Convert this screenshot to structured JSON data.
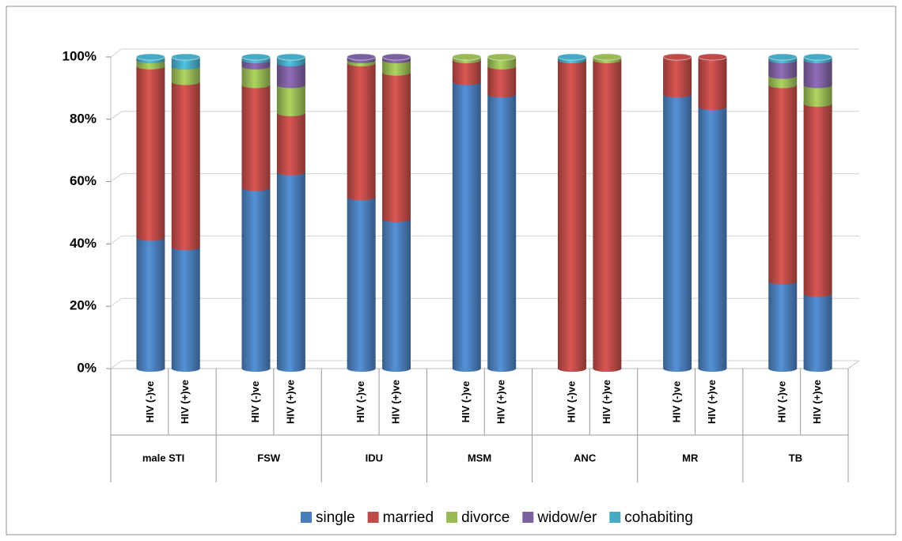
{
  "chart_data": {
    "type": "stacked_bar_100",
    "groups": [
      "male STI",
      "FSW",
      "IDU",
      "MSM",
      "ANC",
      "MR",
      "TB"
    ],
    "categories": [
      "HIV  (-)ve",
      "HIV (+)ve",
      "HIV  (-)ve",
      "HIV (+)ve",
      "HIV  (-)ve",
      "HIV (+)ve",
      "HIV  (-)ve",
      "HIV (+)ve",
      "HIV  (-)ve",
      "HIV (+)ve",
      "HIV  (-)ve",
      "HIV (+)ve",
      "HIV  (-)ve",
      "HIV (+)ve"
    ],
    "series": [
      {
        "name": "single",
        "color": "#4a7ebb",
        "values": [
          42,
          39,
          58,
          63,
          55,
          48,
          92,
          88,
          0,
          0,
          88,
          84,
          28,
          24
        ]
      },
      {
        "name": "married",
        "color": "#be4b48",
        "values": [
          55,
          53,
          33,
          19,
          43,
          47,
          7,
          9,
          99,
          99,
          12,
          16,
          63,
          61
        ]
      },
      {
        "name": "divorce",
        "color": "#98b954",
        "values": [
          2,
          5,
          6,
          9,
          1,
          4,
          1,
          3,
          0,
          1,
          0,
          0,
          3,
          6
        ]
      },
      {
        "name": "widow/er",
        "color": "#7d60a0",
        "values": [
          0,
          0,
          2,
          7,
          1,
          1,
          0,
          0,
          0,
          0,
          0,
          0,
          5,
          8
        ]
      },
      {
        "name": "cohabiting",
        "color": "#46aac5",
        "values": [
          1,
          3,
          1,
          2,
          0,
          0,
          0,
          0,
          1,
          0,
          0,
          0,
          1,
          1
        ]
      }
    ],
    "ylim": [
      0,
      100
    ],
    "yticks": [
      {
        "value": 0,
        "label": "0%"
      },
      {
        "value": 20,
        "label": "20%"
      },
      {
        "value": 40,
        "label": "40%"
      },
      {
        "value": 60,
        "label": "60%"
      },
      {
        "value": 80,
        "label": "80%"
      },
      {
        "value": 100,
        "label": "100%"
      }
    ],
    "grid": true,
    "legend": "bottom"
  }
}
